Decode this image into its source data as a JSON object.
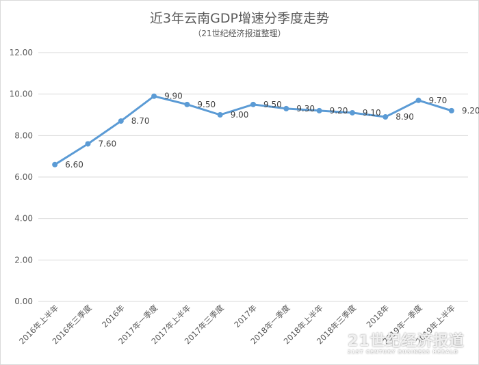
{
  "chart_data": {
    "type": "line",
    "title": "近3年云南GDP增速分季度走势",
    "subtitle": "（21世纪经济报道整理）",
    "categories": [
      "2016年上半年",
      "2016年三季度",
      "2016年",
      "2017年一季度",
      "2017年上半年",
      "2017年三季度",
      "2017年",
      "2018年一季度",
      "2018年上半年",
      "2018年三季度",
      "2018年",
      "2019年一季度",
      "2019年上半年"
    ],
    "series": [
      {
        "values": [
          6.6,
          7.6,
          8.7,
          9.9,
          9.5,
          9.0,
          9.5,
          9.3,
          9.2,
          9.1,
          8.9,
          9.7,
          9.2
        ],
        "labels": [
          "6.60",
          "7.60",
          "8.70",
          "9.90",
          "9.50",
          "9.00",
          "9.50",
          "9.30",
          "9.20",
          "9.10",
          "8.90",
          "9.70",
          "9.20"
        ]
      }
    ],
    "yticks": [
      "0.00",
      "2.00",
      "4.00",
      "6.00",
      "8.00",
      "10.00",
      "12.00"
    ],
    "ylim": [
      0,
      12
    ],
    "grid": true,
    "colors": {
      "line": "#5b9bd5",
      "grid": "#d9d9d9",
      "text": "#595959"
    }
  },
  "watermark": {
    "main": "21世纪经济报道",
    "sub": "21ST CENTURY BUSINESS HERALD"
  }
}
